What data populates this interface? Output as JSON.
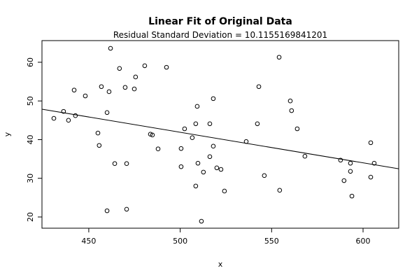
{
  "chart_data": {
    "type": "scatter",
    "title": "Linear Fit of Original Data",
    "subtitle": "Residual Standard Deviation =  10.1155169841201",
    "x_label": "x",
    "y_label": "y",
    "x": [
      430.9,
      436.2,
      438.9,
      442.0,
      442.7,
      448.1,
      455.0,
      455.7,
      456.9,
      460.0,
      461.1,
      461.9,
      460.0,
      464.2,
      466.8,
      469.9,
      470.7,
      470.7,
      474.9,
      475.6,
      480.6,
      483.7,
      484.8,
      487.9,
      492.5,
      500.5,
      500.5,
      502.4,
      506.6,
      508.5,
      508.5,
      509.3,
      509.7,
      511.6,
      512.7,
      516.2,
      516.2,
      518.1,
      518.1,
      520.0,
      522.3,
      524.2,
      536.1,
      542.2,
      543.0,
      546.0,
      554.1,
      554.4,
      560.2,
      560.9,
      564.0,
      568.2,
      587.7,
      589.6,
      593.1,
      593.1,
      593.9,
      604.2,
      604.2,
      606.1
    ],
    "y": [
      45.5,
      47.3,
      45.0,
      52.8,
      46.2,
      51.3,
      41.7,
      38.5,
      53.7,
      47.0,
      52.4,
      63.6,
      21.6,
      33.8,
      58.4,
      53.5,
      33.8,
      22.0,
      53.1,
      56.2,
      59.1,
      41.4,
      41.2,
      37.6,
      58.7,
      37.7,
      33.0,
      42.8,
      40.5,
      44.1,
      28.0,
      48.6,
      33.9,
      18.9,
      31.6,
      44.1,
      35.6,
      50.6,
      38.3,
      32.7,
      32.3,
      26.7,
      39.5,
      44.1,
      53.7,
      30.7,
      61.3,
      26.9,
      50.0,
      47.5,
      42.8,
      35.7,
      34.7,
      29.4,
      33.9,
      31.8,
      25.4,
      39.2,
      30.3,
      33.9
    ],
    "fit": {
      "intercept": 81.4,
      "slope": -0.079
    },
    "xlim": [
      424.4,
      619.5
    ],
    "ylim": [
      17.1,
      65.6
    ],
    "xticks": [
      450,
      500,
      550,
      600
    ],
    "yticks": [
      20,
      30,
      40,
      50,
      60
    ],
    "color": "#000000"
  }
}
